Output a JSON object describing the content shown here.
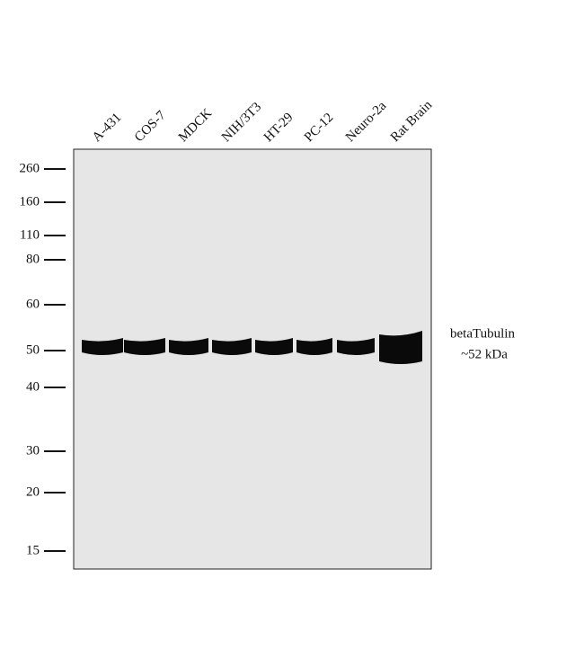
{
  "lanes": [
    "A-431",
    "COS-7",
    "MDCK",
    "NIH/3T3",
    "HT-29",
    "PC-12",
    "Neuro-2a",
    "Rat Brain"
  ],
  "markers": [
    260,
    160,
    110,
    80,
    60,
    50,
    40,
    30,
    20,
    15
  ],
  "annotation": {
    "protein": "betaTubulin",
    "size": "~52 kDa"
  }
}
